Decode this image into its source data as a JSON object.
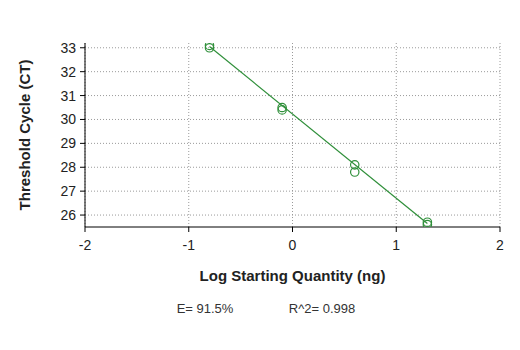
{
  "chart_data": {
    "type": "scatter",
    "xlabel": "Log Starting Quantity (ng)",
    "ylabel": "Threshold Cycle (CT)",
    "annotations": [
      "E= 91.5%",
      "R^2= 0.998"
    ],
    "xlim": [
      -2,
      2
    ],
    "xticks": [
      -2,
      -1,
      0,
      1,
      2
    ],
    "ylim": [
      25.5,
      33.2
    ],
    "yticks": [
      26,
      27,
      28,
      29,
      30,
      31,
      32,
      33
    ],
    "grid": true,
    "series": [
      {
        "type": "scatter",
        "marker": "circle",
        "color": "#2f8f3a",
        "x": [
          -0.8,
          -0.8,
          -0.1,
          -0.1,
          0.6,
          0.6,
          1.3,
          1.3
        ],
        "values": [
          33.1,
          33.0,
          30.5,
          30.4,
          28.1,
          27.8,
          25.7,
          25.6
        ]
      },
      {
        "type": "line",
        "line_style": "solid",
        "color": "#2f8f3a",
        "x": [
          -0.8,
          1.3
        ],
        "values": [
          33.05,
          25.65
        ]
      }
    ]
  }
}
